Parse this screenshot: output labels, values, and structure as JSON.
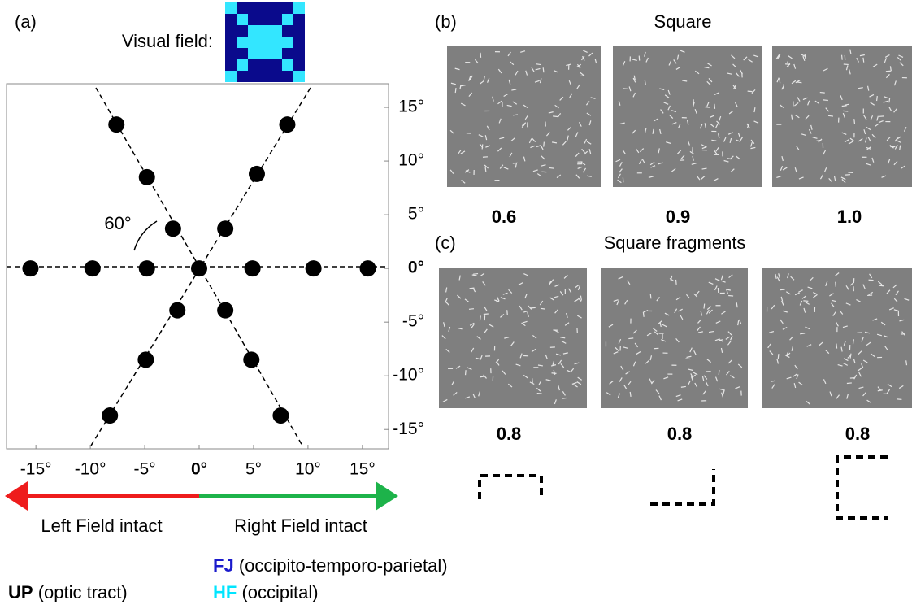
{
  "chart_data": {
    "type": "scatter",
    "panel_label": "(a)",
    "visual_field_label": "Visual field:",
    "angle_label": "60°",
    "x": [
      0,
      -15.5,
      -9.8,
      -4.8,
      4.9,
      10.5,
      15.5,
      -2.4,
      -4.8,
      -7.6,
      2.4,
      5.3,
      8.1,
      -2,
      -4.9,
      -8.2,
      2.4,
      4.8,
      7.5
    ],
    "y": [
      0,
      0,
      0,
      0,
      0,
      0,
      0,
      3.7,
      8.5,
      13.4,
      3.7,
      8.8,
      13.4,
      -3.9,
      -8.5,
      -13.7,
      -3.9,
      -8.5,
      -13.7
    ],
    "color": "#000000",
    "xlim": [
      -17.7,
      17.4
    ],
    "ylim": [
      -16.8,
      17.2
    ],
    "xticks": [
      {
        "value": -15,
        "label": "-15°"
      },
      {
        "value": -10,
        "label": "-10°"
      },
      {
        "value": -5,
        "label": "-5°"
      },
      {
        "value": 0,
        "label": "0°"
      },
      {
        "value": 5,
        "label": "5°"
      },
      {
        "value": 10,
        "label": "10°"
      },
      {
        "value": 15,
        "label": "15°"
      }
    ],
    "yticks": [
      {
        "value": 15,
        "label": "15°"
      },
      {
        "value": 10,
        "label": "10°"
      },
      {
        "value": 5,
        "label": "5°"
      },
      {
        "value": 0,
        "label": "0°"
      },
      {
        "value": -5,
        "label": "-5°"
      },
      {
        "value": -10,
        "label": "-10°"
      },
      {
        "value": -15,
        "label": "-15°"
      }
    ],
    "arrow_labels": [
      "Left Field intact",
      "Right Field intact"
    ]
  },
  "panels": [
    {
      "label": "(b)",
      "title": "Square",
      "values": [
        "0.6",
        "0.9",
        "1.0"
      ]
    },
    {
      "label": "(c)",
      "title": "Square fragments",
      "values": [
        "0.8",
        "0.8",
        "0.8"
      ]
    }
  ],
  "legend": [
    {
      "code": "UP",
      "text": "(optic tract)"
    },
    {
      "code": "FJ",
      "text": "(occipito-temporo-parietal)"
    },
    {
      "code": "HF",
      "text": "(occipital)"
    }
  ]
}
